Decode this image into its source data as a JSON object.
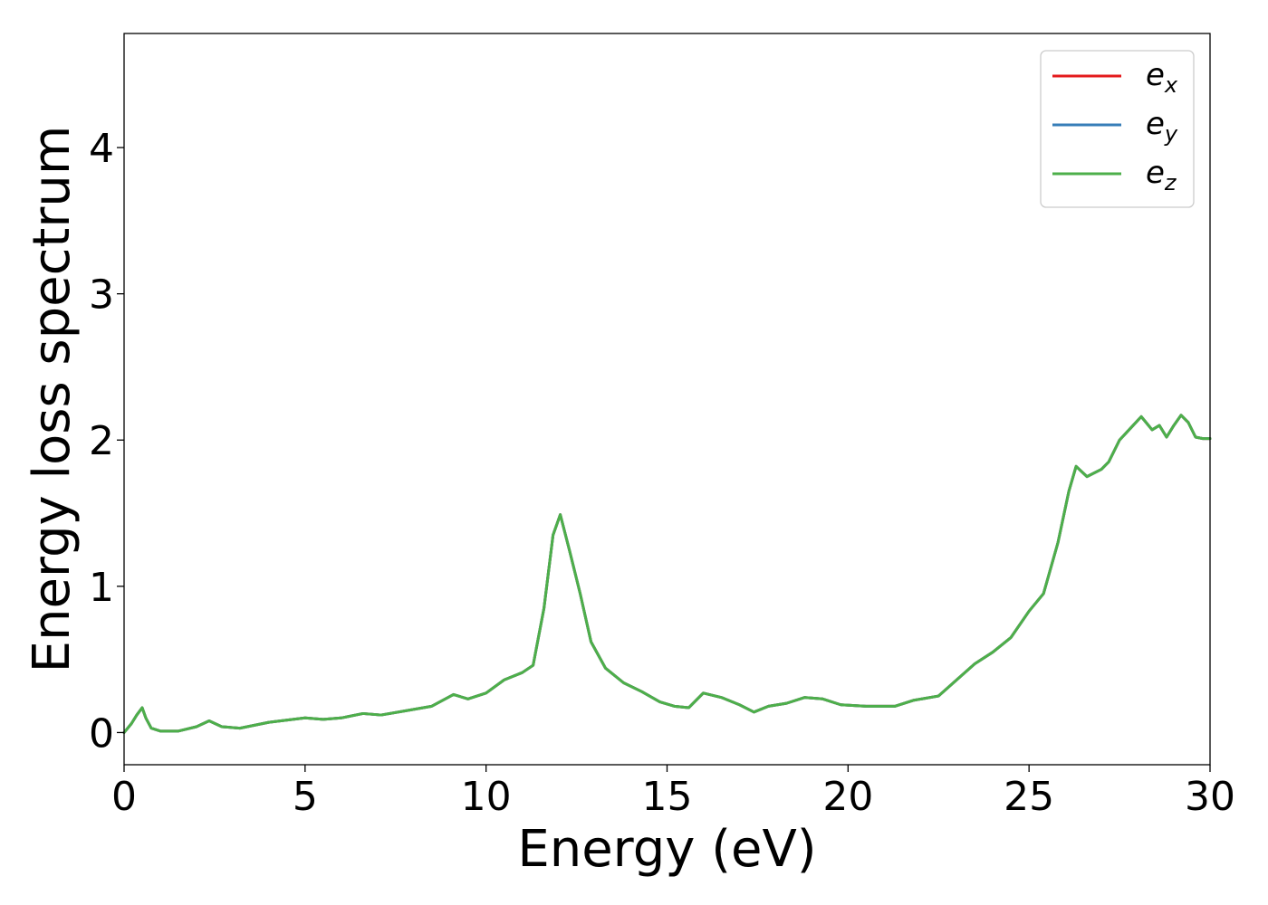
{
  "chart_data": {
    "type": "line",
    "xlabel": "Energy (eV)",
    "ylabel": "Energy loss spectrum",
    "xlim": [
      0,
      30
    ],
    "ylim": [
      -0.22,
      4.78
    ],
    "xticks": [
      "0",
      "5",
      "10",
      "15",
      "20",
      "25",
      "30"
    ],
    "yticks": [
      "0",
      "1",
      "2",
      "3",
      "4"
    ],
    "grid": false,
    "legend_position": "top-right",
    "series": [
      {
        "name": "e_x",
        "legend_base": "e",
        "legend_sub": "x",
        "color": "#e41a1c",
        "x": [
          0,
          0.2,
          0.35,
          0.5,
          0.6,
          0.75,
          1.0,
          1.5,
          2.0,
          2.35,
          2.7,
          3.2,
          4.0,
          5.0,
          5.5,
          6.0,
          6.6,
          7.1,
          7.8,
          8.5,
          9.1,
          9.5,
          10.0,
          10.5,
          11.0,
          11.3,
          11.6,
          11.85,
          12.05,
          12.3,
          12.6,
          12.9,
          13.3,
          13.8,
          14.3,
          14.8,
          15.2,
          15.6,
          16.0,
          16.5,
          17.0,
          17.4,
          17.8,
          18.3,
          18.8,
          19.3,
          19.8,
          20.5,
          21.3,
          21.8,
          22.5,
          23.0,
          23.5,
          24.0,
          24.5,
          25.0,
          25.4,
          25.8,
          26.1,
          26.3,
          26.6,
          27.0,
          27.2,
          27.5,
          27.8,
          28.1,
          28.4,
          28.6,
          28.8,
          29.0,
          29.2,
          29.4,
          29.6,
          29.8,
          30.0
        ],
        "values": [
          0.0,
          0.06,
          0.12,
          0.17,
          0.1,
          0.03,
          0.01,
          0.01,
          0.04,
          0.08,
          0.04,
          0.03,
          0.07,
          0.1,
          0.09,
          0.1,
          0.13,
          0.12,
          0.15,
          0.18,
          0.26,
          0.23,
          0.27,
          0.36,
          0.41,
          0.46,
          0.85,
          1.35,
          1.49,
          1.25,
          0.95,
          0.62,
          0.44,
          0.34,
          0.28,
          0.21,
          0.18,
          0.17,
          0.27,
          0.24,
          0.19,
          0.14,
          0.18,
          0.2,
          0.24,
          0.23,
          0.19,
          0.18,
          0.18,
          0.22,
          0.25,
          0.36,
          0.47,
          0.55,
          0.65,
          0.83,
          0.95,
          1.3,
          1.65,
          1.82,
          1.75,
          1.8,
          1.85,
          2.0,
          2.08,
          2.16,
          2.07,
          2.1,
          2.02,
          2.1,
          2.17,
          2.12,
          2.02,
          2.01,
          2.01
        ]
      },
      {
        "name": "e_y",
        "legend_base": "e",
        "legend_sub": "y",
        "color": "#377eb8",
        "x": [
          0,
          0.2,
          0.35,
          0.5,
          0.6,
          0.75,
          1.0,
          1.5,
          2.0,
          2.35,
          2.7,
          3.2,
          4.0,
          5.0,
          5.5,
          6.0,
          6.6,
          7.1,
          7.8,
          8.5,
          9.1,
          9.5,
          10.0,
          10.5,
          11.0,
          11.3,
          11.6,
          11.85,
          12.05,
          12.3,
          12.6,
          12.9,
          13.3,
          13.8,
          14.3,
          14.8,
          15.2,
          15.6,
          16.0,
          16.5,
          17.0,
          17.4,
          17.8,
          18.3,
          18.8,
          19.3,
          19.8,
          20.5,
          21.3,
          21.8,
          22.5,
          23.0,
          23.5,
          24.0,
          24.5,
          25.0,
          25.4,
          25.8,
          26.1,
          26.3,
          26.6,
          27.0,
          27.2,
          27.5,
          27.8,
          28.1,
          28.4,
          28.6,
          28.8,
          29.0,
          29.2,
          29.4,
          29.6,
          29.8,
          30.0
        ],
        "values": [
          0.0,
          0.06,
          0.12,
          0.17,
          0.1,
          0.03,
          0.01,
          0.01,
          0.04,
          0.08,
          0.04,
          0.03,
          0.07,
          0.1,
          0.09,
          0.1,
          0.13,
          0.12,
          0.15,
          0.18,
          0.26,
          0.23,
          0.27,
          0.36,
          0.41,
          0.46,
          0.85,
          1.35,
          1.49,
          1.25,
          0.95,
          0.62,
          0.44,
          0.34,
          0.28,
          0.21,
          0.18,
          0.17,
          0.27,
          0.24,
          0.19,
          0.14,
          0.18,
          0.2,
          0.24,
          0.23,
          0.19,
          0.18,
          0.18,
          0.22,
          0.25,
          0.36,
          0.47,
          0.55,
          0.65,
          0.83,
          0.95,
          1.3,
          1.65,
          1.82,
          1.75,
          1.8,
          1.85,
          2.0,
          2.08,
          2.16,
          2.07,
          2.1,
          2.02,
          2.1,
          2.17,
          2.12,
          2.02,
          2.01,
          2.01
        ]
      },
      {
        "name": "e_z",
        "legend_base": "e",
        "legend_sub": "z",
        "color": "#4daf4a",
        "x": [
          0,
          0.2,
          0.35,
          0.5,
          0.6,
          0.75,
          1.0,
          1.5,
          2.0,
          2.35,
          2.7,
          3.2,
          4.0,
          5.0,
          5.5,
          6.0,
          6.6,
          7.1,
          7.8,
          8.5,
          9.1,
          9.5,
          10.0,
          10.5,
          11.0,
          11.3,
          11.6,
          11.85,
          12.05,
          12.3,
          12.6,
          12.9,
          13.3,
          13.8,
          14.3,
          14.8,
          15.2,
          15.6,
          16.0,
          16.5,
          17.0,
          17.4,
          17.8,
          18.3,
          18.8,
          19.3,
          19.8,
          20.5,
          21.3,
          21.8,
          22.5,
          23.0,
          23.5,
          24.0,
          24.5,
          25.0,
          25.4,
          25.8,
          26.1,
          26.3,
          26.6,
          27.0,
          27.2,
          27.5,
          27.8,
          28.1,
          28.4,
          28.6,
          28.8,
          29.0,
          29.2,
          29.4,
          29.6,
          29.8,
          30.0
        ],
        "values": [
          0.0,
          0.06,
          0.12,
          0.17,
          0.1,
          0.03,
          0.01,
          0.01,
          0.04,
          0.08,
          0.04,
          0.03,
          0.07,
          0.1,
          0.09,
          0.1,
          0.13,
          0.12,
          0.15,
          0.18,
          0.26,
          0.23,
          0.27,
          0.36,
          0.41,
          0.46,
          0.85,
          1.35,
          1.49,
          1.25,
          0.95,
          0.62,
          0.44,
          0.34,
          0.28,
          0.21,
          0.18,
          0.17,
          0.27,
          0.24,
          0.19,
          0.14,
          0.18,
          0.2,
          0.24,
          0.23,
          0.19,
          0.18,
          0.18,
          0.22,
          0.25,
          0.36,
          0.47,
          0.55,
          0.65,
          0.83,
          0.95,
          1.3,
          1.65,
          1.82,
          1.75,
          1.8,
          1.85,
          2.0,
          2.08,
          2.16,
          2.07,
          2.1,
          2.02,
          2.1,
          2.17,
          2.12,
          2.02,
          2.01,
          2.01
        ]
      }
    ]
  }
}
